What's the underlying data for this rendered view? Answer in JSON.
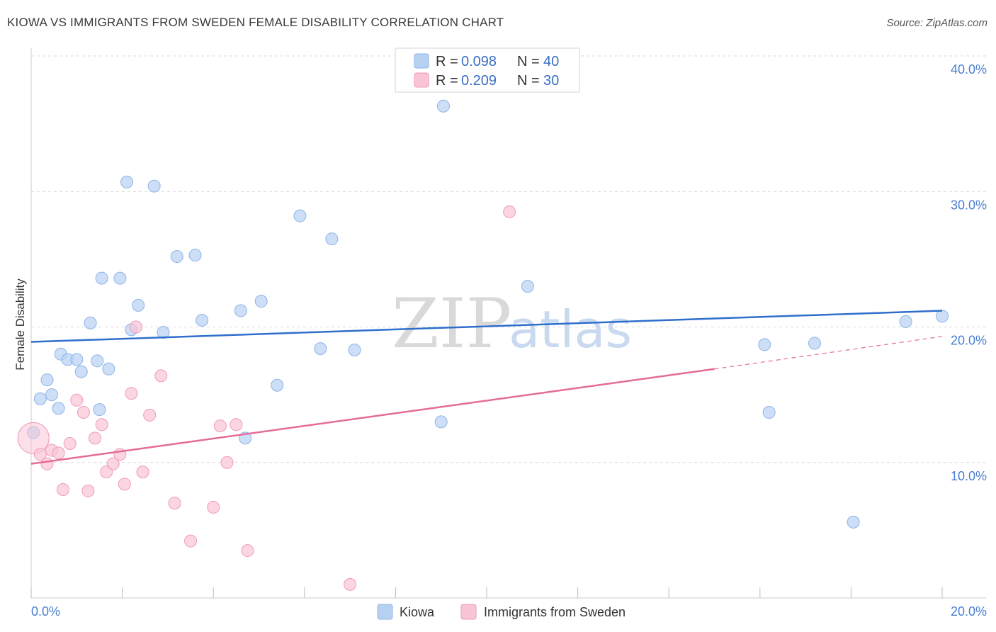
{
  "header": {
    "title": "KIOWA VS IMMIGRANTS FROM SWEDEN FEMALE DISABILITY CORRELATION CHART",
    "source": "Source: ZipAtlas.com"
  },
  "watermark": {
    "zip": "ZIP",
    "atlas": "atlas"
  },
  "colors": {
    "kiowa_fill": "#b7d1f3",
    "kiowa_stroke": "#8fb3e6",
    "kiowa_line": "#2f6fcc",
    "sweden_fill": "#f9c4d5",
    "sweden_stroke": "#f09ab7",
    "sweden_line": "#e56b98",
    "grid": "#d9d9d9",
    "tick_text": "#4a7fd0"
  },
  "legend": {
    "rows": [
      {
        "r_label": "R = ",
        "r_value": "0.098",
        "n_label": "N = ",
        "n_value": "40"
      },
      {
        "r_label": "R = ",
        "r_value": "0.209",
        "n_label": "N = ",
        "n_value": "30"
      }
    ]
  },
  "bottom_legend": {
    "kiowa": "Kiowa",
    "sweden": "Immigrants from Sweden"
  },
  "chart_data": {
    "type": "scatter",
    "title": "KIOWA VS IMMIGRANTS FROM SWEDEN FEMALE DISABILITY CORRELATION CHART",
    "xlabel": "",
    "ylabel": "Female Disability",
    "xlim": [
      0,
      20
    ],
    "ylim": [
      0,
      40
    ],
    "x_tick_labels": [
      "0.0%",
      "20.0%"
    ],
    "y_ticks": [
      10,
      20,
      30,
      40
    ],
    "y_tick_labels": [
      "10.0%",
      "20.0%",
      "30.0%",
      "40.0%"
    ],
    "series": [
      {
        "name": "Kiowa",
        "r": 0.098,
        "n": 40,
        "trend": {
          "x": [
            0,
            20
          ],
          "y": [
            18.9,
            21.2
          ],
          "style": "solid"
        },
        "points": [
          [
            0.05,
            12.2
          ],
          [
            0.2,
            14.7
          ],
          [
            0.35,
            16.1
          ],
          [
            0.45,
            15.0
          ],
          [
            0.6,
            14.0
          ],
          [
            0.65,
            18.0
          ],
          [
            0.8,
            17.6
          ],
          [
            1.0,
            17.6
          ],
          [
            1.1,
            16.7
          ],
          [
            1.3,
            20.3
          ],
          [
            1.45,
            17.5
          ],
          [
            1.5,
            13.9
          ],
          [
            1.55,
            23.6
          ],
          [
            1.7,
            16.9
          ],
          [
            1.95,
            23.6
          ],
          [
            2.1,
            30.7
          ],
          [
            2.2,
            19.8
          ],
          [
            2.35,
            21.6
          ],
          [
            2.7,
            30.4
          ],
          [
            2.9,
            19.6
          ],
          [
            3.2,
            25.2
          ],
          [
            3.6,
            25.3
          ],
          [
            3.75,
            20.5
          ],
          [
            4.6,
            21.2
          ],
          [
            4.7,
            11.8
          ],
          [
            5.05,
            21.9
          ],
          [
            5.4,
            15.7
          ],
          [
            5.9,
            28.2
          ],
          [
            6.35,
            18.4
          ],
          [
            6.6,
            26.5
          ],
          [
            7.1,
            18.3
          ],
          [
            9.0,
            13.0
          ],
          [
            9.05,
            36.3
          ],
          [
            10.9,
            23.0
          ],
          [
            16.1,
            18.7
          ],
          [
            16.2,
            13.7
          ],
          [
            17.2,
            18.8
          ],
          [
            18.05,
            5.6
          ],
          [
            19.2,
            20.4
          ],
          [
            20.0,
            20.8
          ]
        ]
      },
      {
        "name": "Immigrants from Sweden",
        "r": 0.209,
        "n": 30,
        "trend": {
          "x": [
            0,
            15
          ],
          "y": [
            9.9,
            16.9
          ],
          "x_dashed_end": 20,
          "y_dashed_end": 19.3,
          "style": "solid-then-dashed"
        },
        "points": [
          [
            0.05,
            11.8
          ],
          [
            0.2,
            10.6
          ],
          [
            0.35,
            9.9
          ],
          [
            0.45,
            10.9
          ],
          [
            0.6,
            10.7
          ],
          [
            0.7,
            8.0
          ],
          [
            0.85,
            11.4
          ],
          [
            1.0,
            14.6
          ],
          [
            1.15,
            13.7
          ],
          [
            1.25,
            7.9
          ],
          [
            1.4,
            11.8
          ],
          [
            1.55,
            12.8
          ],
          [
            1.65,
            9.3
          ],
          [
            1.8,
            9.9
          ],
          [
            1.95,
            10.6
          ],
          [
            2.05,
            8.4
          ],
          [
            2.2,
            15.1
          ],
          [
            2.3,
            20.0
          ],
          [
            2.45,
            9.3
          ],
          [
            2.6,
            13.5
          ],
          [
            2.85,
            16.4
          ],
          [
            3.15,
            7.0
          ],
          [
            3.5,
            4.2
          ],
          [
            4.0,
            6.7
          ],
          [
            4.15,
            12.7
          ],
          [
            4.3,
            10.0
          ],
          [
            4.5,
            12.8
          ],
          [
            4.75,
            3.5
          ],
          [
            7.0,
            1.0
          ],
          [
            10.5,
            28.5
          ]
        ]
      }
    ]
  }
}
